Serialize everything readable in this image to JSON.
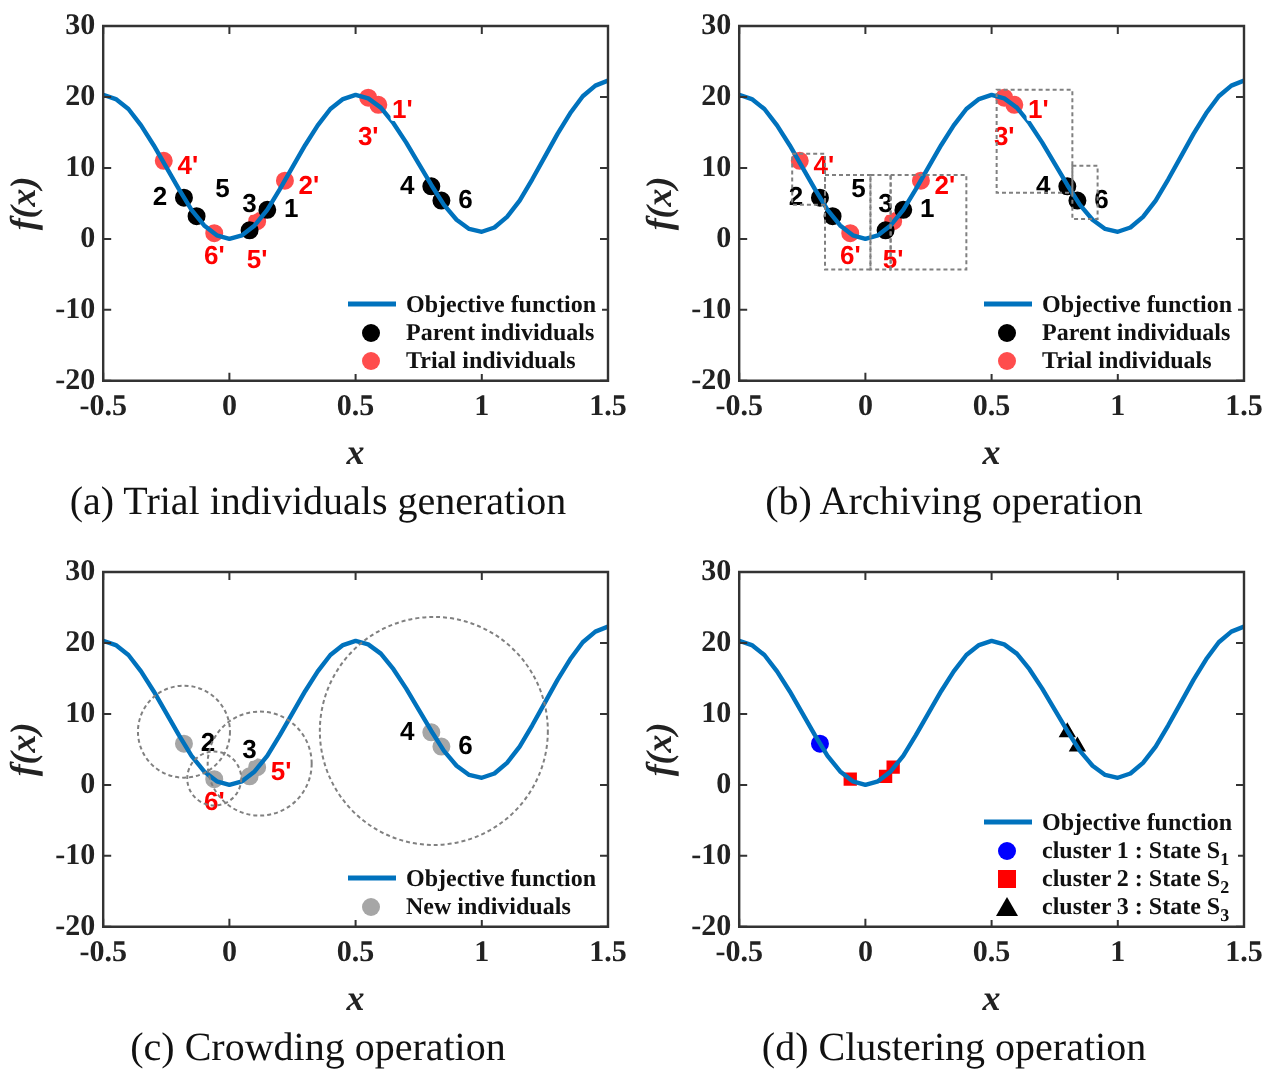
{
  "chart_data": [
    {
      "type": "line",
      "title": "(a) Trial individuals generation",
      "xlabel": "x",
      "ylabel": "f(x)",
      "xlim": [
        -0.5,
        1.5
      ],
      "ylim": [
        -20,
        30
      ],
      "xticks": [
        -0.5,
        0,
        0.5,
        1,
        1.5
      ],
      "yticks": [
        -20,
        -10,
        0,
        10,
        20,
        30
      ],
      "legend": "bottom right",
      "series": [
        {
          "name": "Objective function",
          "type": "line",
          "color": "#0072bd",
          "marker": "none",
          "x": [
            -0.5,
            -0.45,
            -0.4,
            -0.35,
            -0.3,
            -0.25,
            -0.2,
            -0.15,
            -0.1,
            -0.05,
            0,
            0.05,
            0.1,
            0.15,
            0.2,
            0.25,
            0.3,
            0.35,
            0.4,
            0.45,
            0.5,
            0.55,
            0.6,
            0.65,
            0.7,
            0.75,
            0.8,
            0.85,
            0.9,
            0.95,
            1,
            1.05,
            1.1,
            1.15,
            1.2,
            1.25,
            1.3,
            1.35,
            1.4,
            1.45,
            1.5
          ],
          "values": [
            20.3,
            19.7,
            18.3,
            16.0,
            13.2,
            10.1,
            7.0,
            4.1,
            1.9,
            0.5,
            0,
            0.5,
            1.9,
            4.1,
            7.0,
            10.1,
            13.2,
            16.0,
            18.3,
            19.7,
            20.3,
            19.8,
            18.5,
            16.3,
            13.6,
            10.6,
            7.6,
            4.8,
            2.7,
            1.4,
            1.0,
            1.6,
            3.1,
            5.4,
            8.4,
            11.6,
            14.8,
            17.7,
            20.1,
            21.6,
            22.3
          ]
        },
        {
          "name": "Parent individuals",
          "type": "scatter",
          "color": "#000000",
          "marker": "circle",
          "x": [
            -0.18,
            -0.13,
            0.08,
            0.15,
            0.8,
            0.84
          ],
          "values": [
            5.8,
            3.2,
            1.2,
            4.1,
            7.4,
            5.4
          ]
        },
        {
          "name": "Trial individuals",
          "type": "scatter",
          "color": "#ff4d4d",
          "marker": "circle",
          "x": [
            -0.26,
            -0.06,
            0.11,
            0.22,
            0.55,
            0.59
          ],
          "values": [
            11.0,
            0.8,
            2.5,
            8.2,
            19.9,
            18.9
          ]
        }
      ],
      "annotations": [
        {
          "text": "2",
          "x": -0.18,
          "y": 5.8
        },
        {
          "text": "5",
          "x": -0.13,
          "y": 3.2
        },
        {
          "text": "3",
          "x": 0.08,
          "y": 1.2
        },
        {
          "text": "1",
          "x": 0.15,
          "y": 4.1
        },
        {
          "text": "4",
          "x": 0.8,
          "y": 7.4
        },
        {
          "text": "6",
          "x": 0.84,
          "y": 5.4
        },
        {
          "text": "4'",
          "x": -0.26,
          "y": 11.0
        },
        {
          "text": "6'",
          "x": -0.06,
          "y": 0.8
        },
        {
          "text": "5'",
          "x": 0.11,
          "y": 2.5
        },
        {
          "text": "2'",
          "x": 0.22,
          "y": 8.2
        },
        {
          "text": "3'",
          "x": 0.55,
          "y": 19.9
        },
        {
          "text": "1'",
          "x": 0.59,
          "y": 18.9
        }
      ]
    },
    {
      "type": "line",
      "title": "(b) Archiving operation",
      "xlabel": "x",
      "ylabel": "f(x)",
      "xlim": [
        -0.5,
        1.5
      ],
      "ylim": [
        -20,
        30
      ],
      "xticks": [
        -0.5,
        0,
        0.5,
        1,
        1.5
      ],
      "yticks": [
        -20,
        -10,
        0,
        10,
        20,
        30
      ],
      "legend": "bottom right",
      "series": [
        {
          "name": "Objective function",
          "type": "line",
          "color": "#0072bd",
          "marker": "none",
          "x": [
            -0.5,
            -0.45,
            -0.4,
            -0.35,
            -0.3,
            -0.25,
            -0.2,
            -0.15,
            -0.1,
            -0.05,
            0,
            0.05,
            0.1,
            0.15,
            0.2,
            0.25,
            0.3,
            0.35,
            0.4,
            0.45,
            0.5,
            0.55,
            0.6,
            0.65,
            0.7,
            0.75,
            0.8,
            0.85,
            0.9,
            0.95,
            1,
            1.05,
            1.1,
            1.15,
            1.2,
            1.25,
            1.3,
            1.35,
            1.4,
            1.45,
            1.5
          ],
          "values": [
            20.3,
            19.7,
            18.3,
            16.0,
            13.2,
            10.1,
            7.0,
            4.1,
            1.9,
            0.5,
            0,
            0.5,
            1.9,
            4.1,
            7.0,
            10.1,
            13.2,
            16.0,
            18.3,
            19.7,
            20.3,
            19.8,
            18.5,
            16.3,
            13.6,
            10.6,
            7.6,
            4.8,
            2.7,
            1.4,
            1.0,
            1.6,
            3.1,
            5.4,
            8.4,
            11.6,
            14.8,
            17.7,
            20.1,
            21.6,
            22.3
          ]
        },
        {
          "name": "Parent individuals",
          "type": "scatter",
          "color": "#000000",
          "marker": "circle",
          "x": [
            -0.18,
            -0.13,
            0.08,
            0.15,
            0.8,
            0.84
          ],
          "values": [
            5.8,
            3.2,
            1.2,
            4.1,
            7.4,
            5.4
          ]
        },
        {
          "name": "Trial individuals",
          "type": "scatter",
          "color": "#ff4d4d",
          "marker": "circle",
          "x": [
            -0.26,
            -0.06,
            0.11,
            0.22,
            0.55,
            0.59
          ],
          "values": [
            11.0,
            0.8,
            2.5,
            8.2,
            19.9,
            18.9
          ]
        }
      ],
      "annotations": [
        {
          "text": "2",
          "x": -0.18,
          "y": 5.8
        },
        {
          "text": "5",
          "x": -0.13,
          "y": 3.2
        },
        {
          "text": "3",
          "x": 0.08,
          "y": 1.2
        },
        {
          "text": "1",
          "x": 0.15,
          "y": 4.1
        },
        {
          "text": "4",
          "x": 0.8,
          "y": 7.4
        },
        {
          "text": "6",
          "x": 0.84,
          "y": 5.4
        },
        {
          "text": "4'",
          "x": -0.26,
          "y": 11.0
        },
        {
          "text": "6'",
          "x": -0.06,
          "y": 0.8
        },
        {
          "text": "5'",
          "x": 0.11,
          "y": 2.5
        },
        {
          "text": "2'",
          "x": 0.22,
          "y": 8.2
        },
        {
          "text": "3'",
          "x": 0.55,
          "y": 19.9
        },
        {
          "text": "1'",
          "x": 0.59,
          "y": 18.9
        }
      ]
    },
    {
      "type": "line",
      "title": "(c) Crowding operation",
      "xlabel": "x",
      "ylabel": "f(x)",
      "xlim": [
        -0.5,
        1.5
      ],
      "ylim": [
        -20,
        30
      ],
      "xticks": [
        -0.5,
        0,
        0.5,
        1,
        1.5
      ],
      "yticks": [
        -20,
        -10,
        0,
        10,
        20,
        30
      ],
      "legend": "bottom right",
      "series": [
        {
          "name": "Objective function",
          "type": "line",
          "color": "#0072bd",
          "marker": "none",
          "x": [
            -0.5,
            -0.45,
            -0.4,
            -0.35,
            -0.3,
            -0.25,
            -0.2,
            -0.15,
            -0.1,
            -0.05,
            0,
            0.05,
            0.1,
            0.15,
            0.2,
            0.25,
            0.3,
            0.35,
            0.4,
            0.45,
            0.5,
            0.55,
            0.6,
            0.65,
            0.7,
            0.75,
            0.8,
            0.85,
            0.9,
            0.95,
            1,
            1.05,
            1.1,
            1.15,
            1.2,
            1.25,
            1.3,
            1.35,
            1.4,
            1.45,
            1.5
          ],
          "values": [
            20.3,
            19.7,
            18.3,
            16.0,
            13.2,
            10.1,
            7.0,
            4.1,
            1.9,
            0.5,
            0,
            0.5,
            1.9,
            4.1,
            7.0,
            10.1,
            13.2,
            16.0,
            18.3,
            19.7,
            20.3,
            19.8,
            18.5,
            16.3,
            13.6,
            10.6,
            7.6,
            4.8,
            2.7,
            1.4,
            1.0,
            1.6,
            3.1,
            5.4,
            8.4,
            11.6,
            14.8,
            17.7,
            20.1,
            21.6,
            22.3
          ]
        },
        {
          "name": "New individuals",
          "type": "scatter",
          "color": "#a6a6a6",
          "marker": "circle",
          "x": [
            -0.18,
            0.08,
            0.8,
            0.84
          ],
          "values": [
            5.8,
            1.2,
            7.4,
            5.4
          ]
        },
        {
          "type": "scatter",
          "color": "#a6a6a6",
          "marker": "circle",
          "x": [
            -0.06,
            0.11
          ],
          "values": [
            0.8,
            2.5
          ]
        }
      ],
      "annotations": [
        {
          "text": "2",
          "x": -0.18,
          "y": 5.8
        },
        {
          "text": "3",
          "x": 0.08,
          "y": 1.2
        },
        {
          "text": "4",
          "x": 0.8,
          "y": 7.4
        },
        {
          "text": "6",
          "x": 0.84,
          "y": 5.4
        },
        {
          "text": "6'",
          "x": -0.06,
          "y": 0.8
        },
        {
          "text": "5'",
          "x": 0.11,
          "y": 2.5
        }
      ]
    },
    {
      "type": "line",
      "title": "(d) Clustering operation",
      "xlabel": "x",
      "ylabel": "f(x)",
      "xlim": [
        -0.5,
        1.5
      ],
      "ylim": [
        -20,
        30
      ],
      "xticks": [
        -0.5,
        0,
        0.5,
        1,
        1.5
      ],
      "yticks": [
        -20,
        -10,
        0,
        10,
        20,
        30
      ],
      "legend": "bottom right",
      "series": [
        {
          "name": "Objective function",
          "type": "line",
          "color": "#0072bd",
          "marker": "none",
          "x": [
            -0.5,
            -0.45,
            -0.4,
            -0.35,
            -0.3,
            -0.25,
            -0.2,
            -0.15,
            -0.1,
            -0.05,
            0,
            0.05,
            0.1,
            0.15,
            0.2,
            0.25,
            0.3,
            0.35,
            0.4,
            0.45,
            0.5,
            0.55,
            0.6,
            0.65,
            0.7,
            0.75,
            0.8,
            0.85,
            0.9,
            0.95,
            1,
            1.05,
            1.1,
            1.15,
            1.2,
            1.25,
            1.3,
            1.35,
            1.4,
            1.45,
            1.5
          ],
          "values": [
            20.3,
            19.7,
            18.3,
            16.0,
            13.2,
            10.1,
            7.0,
            4.1,
            1.9,
            0.5,
            0,
            0.5,
            1.9,
            4.1,
            7.0,
            10.1,
            13.2,
            16.0,
            18.3,
            19.7,
            20.3,
            19.8,
            18.5,
            16.3,
            13.6,
            10.6,
            7.6,
            4.8,
            2.7,
            1.4,
            1.0,
            1.6,
            3.1,
            5.4,
            8.4,
            11.6,
            14.8,
            17.7,
            20.1,
            21.6,
            22.3
          ]
        },
        {
          "name": "cluster 1 : State S$_{1}$",
          "type": "scatter",
          "color": "#0000ff",
          "marker": "circle",
          "x": [
            -0.18
          ],
          "values": [
            5.8
          ]
        },
        {
          "name": "cluster 2 : State S$_{2}$",
          "type": "scatter",
          "color": "#ff0000",
          "marker": "square",
          "x": [
            -0.06,
            0.08,
            0.11
          ],
          "values": [
            0.8,
            1.2,
            2.5
          ]
        },
        {
          "name": "cluster 3 : State S$_{3}$",
          "type": "scatter",
          "color": "#000000",
          "marker": "triangle",
          "x": [
            0.8,
            0.84
          ],
          "values": [
            7.4,
            5.4
          ]
        }
      ]
    }
  ]
}
